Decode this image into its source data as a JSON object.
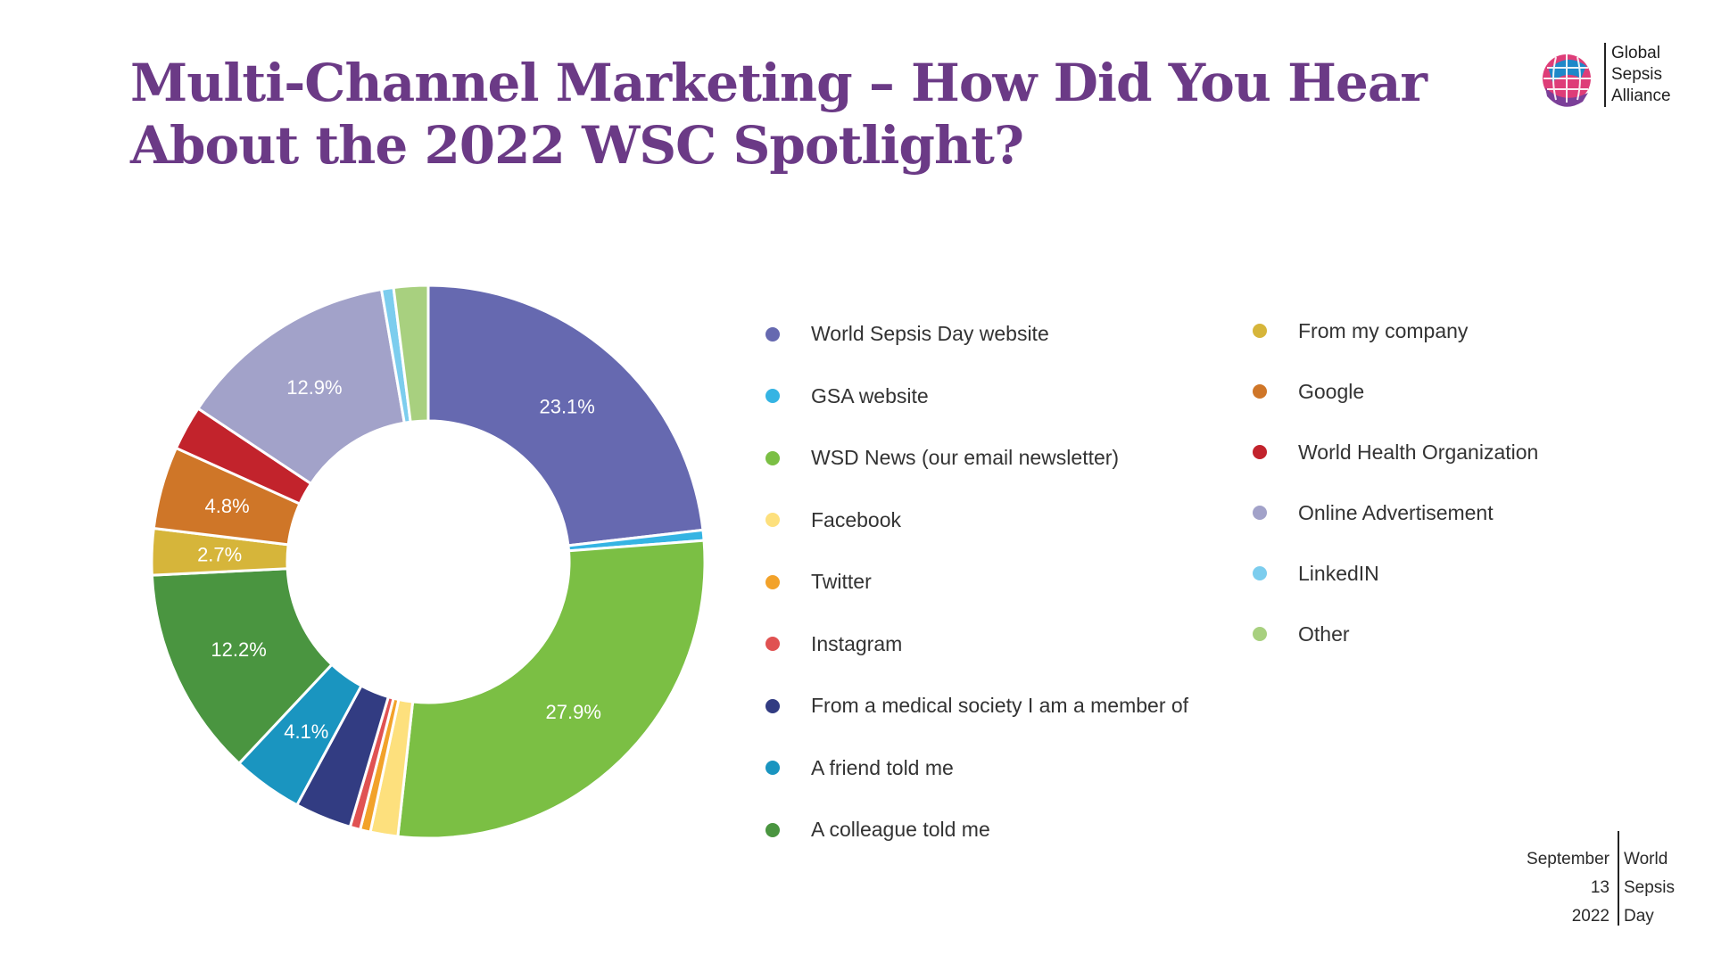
{
  "slide_title": "Multi-Channel Marketing – How Did You Hear About the 2022 WSC Spotlight?",
  "logo": {
    "lines": [
      "Global",
      "Sepsis",
      "Alliance"
    ]
  },
  "footer": {
    "left": [
      "September",
      "13",
      "2022"
    ],
    "right": [
      "World",
      "Sepsis",
      "Day"
    ]
  },
  "chart_data": {
    "type": "pie",
    "series": [
      {
        "values": [
          23.1,
          0.6,
          27.9,
          1.6,
          0.6,
          0.6,
          3.3,
          4.1,
          12.2,
          2.7,
          4.8,
          2.6,
          12.9,
          0.7,
          2.0
        ],
        "labels": [
          "World Sepsis Day website",
          "GSA website",
          "WSD News (our email newsletter)",
          "Facebook",
          "Twitter",
          "Instagram",
          "From a medical society I am a member of",
          "A friend told me",
          "A colleague told me",
          "From my company",
          "Google",
          "World Health Organization",
          "Online Advertisement",
          "LinkedIN",
          "Other"
        ]
      }
    ],
    "data_labels": [
      "23.1%",
      "",
      "27.9%",
      "",
      "",
      "",
      "",
      "4.1%",
      "12.2%",
      "2.7%",
      "4.8%",
      "",
      "12.9%",
      "",
      ""
    ],
    "colors": [
      "#6669b0",
      "#35b4e3",
      "#7bbf44",
      "#fde07d",
      "#f2a22a",
      "#e05252",
      "#323c82",
      "#1a95c0",
      "#4a9540",
      "#d6b53a",
      "#cf7628",
      "#c2232c",
      "#a2a2c9",
      "#7ccdee",
      "#a8d07f"
    ],
    "start": "12 o'clock, clockwise",
    "legend_position": "right"
  }
}
